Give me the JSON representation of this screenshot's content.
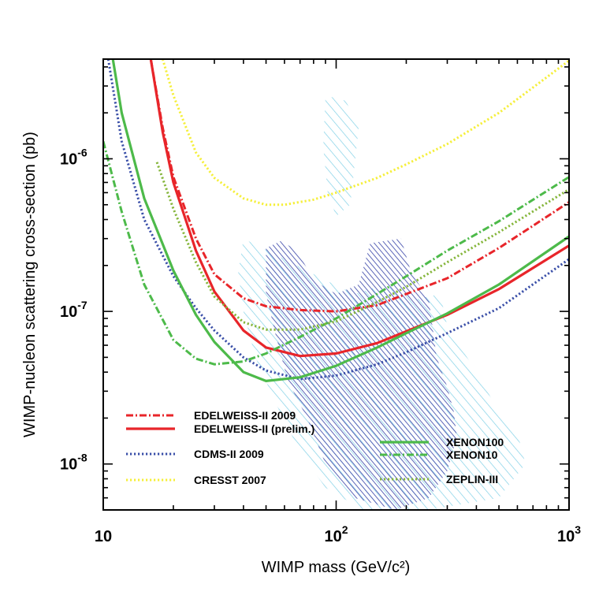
{
  "chart_data": {
    "type": "line",
    "xlabel": "WIMP mass (GeV/c²)",
    "ylabel": "WIMP-nucleon scattering cross-section (pb)",
    "x_scale": "log",
    "y_scale": "log",
    "xlim": [
      10,
      1000
    ],
    "ylim": [
      5e-09,
      4.5e-06
    ],
    "grid": false,
    "legend_position": "lower-left and lower-right inside plot",
    "x_ticks": [
      {
        "value": 10,
        "mantissa": "10",
        "exponent": ""
      },
      {
        "value": 100,
        "mantissa": "10",
        "exponent": "2"
      },
      {
        "value": 1000,
        "mantissa": "10",
        "exponent": "3"
      }
    ],
    "y_ticks": [
      {
        "value": 1e-08,
        "mantissa": "10",
        "exponent": "-8"
      },
      {
        "value": 1e-07,
        "mantissa": "10",
        "exponent": "-7"
      },
      {
        "value": 1e-06,
        "mantissa": "10",
        "exponent": "-6"
      }
    ],
    "series": [
      {
        "name": "EDELWEISS-II 2009",
        "color": "#e8252a",
        "style": "dash-dot",
        "points": [
          [
            16,
            4.5e-06
          ],
          [
            18,
            1.6e-06
          ],
          [
            20,
            7.6e-07
          ],
          [
            25,
            3e-07
          ],
          [
            30,
            1.75e-07
          ],
          [
            40,
            1.22e-07
          ],
          [
            50,
            1.08e-07
          ],
          [
            70,
            1.02e-07
          ],
          [
            100,
            1e-07
          ],
          [
            150,
            1.1e-07
          ],
          [
            200,
            1.3e-07
          ],
          [
            300,
            1.65e-07
          ],
          [
            500,
            2.6e-07
          ],
          [
            1000,
            5.2e-07
          ]
        ]
      },
      {
        "name": "EDELWEISS-II (prelim.)",
        "color": "#e8252a",
        "style": "solid",
        "points": [
          [
            16,
            4.5e-06
          ],
          [
            18,
            1.5e-06
          ],
          [
            20,
            7e-07
          ],
          [
            25,
            2.5e-07
          ],
          [
            30,
            1.35e-07
          ],
          [
            40,
            7.5e-08
          ],
          [
            50,
            5.8e-08
          ],
          [
            70,
            5.1e-08
          ],
          [
            100,
            5.3e-08
          ],
          [
            150,
            6.2e-08
          ],
          [
            200,
            7.4e-08
          ],
          [
            300,
            9.5e-08
          ],
          [
            500,
            1.4e-07
          ],
          [
            1000,
            2.7e-07
          ]
        ]
      },
      {
        "name": "CDMS-II 2009",
        "color": "#3a4fa8",
        "style": "dotted",
        "points": [
          [
            10.5,
            4.5e-06
          ],
          [
            12,
            1.3e-06
          ],
          [
            15,
            4e-07
          ],
          [
            20,
            1.7e-07
          ],
          [
            25,
            1.05e-07
          ],
          [
            30,
            7.5e-08
          ],
          [
            40,
            5e-08
          ],
          [
            50,
            4.1e-08
          ],
          [
            70,
            3.6e-08
          ],
          [
            100,
            3.8e-08
          ],
          [
            150,
            4.5e-08
          ],
          [
            200,
            5.4e-08
          ],
          [
            300,
            7.2e-08
          ],
          [
            500,
            1.05e-07
          ],
          [
            1000,
            2.2e-07
          ]
        ]
      },
      {
        "name": "CRESST 2007",
        "color": "#f5ef3a",
        "style": "dotted",
        "points": [
          [
            18,
            4.5e-06
          ],
          [
            20,
            2.6e-06
          ],
          [
            25,
            1.1e-06
          ],
          [
            30,
            7.5e-07
          ],
          [
            40,
            5.5e-07
          ],
          [
            50,
            5e-07
          ],
          [
            60,
            5e-07
          ],
          [
            80,
            5.4e-07
          ],
          [
            100,
            6e-07
          ],
          [
            150,
            7.5e-07
          ],
          [
            200,
            9.2e-07
          ],
          [
            300,
            1.25e-06
          ],
          [
            500,
            2e-06
          ],
          [
            1000,
            4.4e-06
          ]
        ]
      },
      {
        "name": "XENON100",
        "color": "#4dba4a",
        "style": "solid",
        "points": [
          [
            11,
            4.5e-06
          ],
          [
            12,
            2e-06
          ],
          [
            15,
            5.5e-07
          ],
          [
            20,
            1.85e-07
          ],
          [
            25,
            9.5e-08
          ],
          [
            30,
            6.3e-08
          ],
          [
            40,
            4e-08
          ],
          [
            50,
            3.5e-08
          ],
          [
            70,
            3.7e-08
          ],
          [
            100,
            4.4e-08
          ],
          [
            150,
            5.8e-08
          ],
          [
            200,
            7.2e-08
          ],
          [
            300,
            9.7e-08
          ],
          [
            500,
            1.5e-07
          ],
          [
            1000,
            3.1e-07
          ]
        ]
      },
      {
        "name": "XENON10",
        "color": "#4dba4a",
        "style": "dash-dot",
        "points": [
          [
            10,
            1.3e-06
          ],
          [
            12,
            4.5e-07
          ],
          [
            15,
            1.5e-07
          ],
          [
            20,
            6.5e-08
          ],
          [
            25,
            4.9e-08
          ],
          [
            30,
            4.5e-08
          ],
          [
            40,
            4.7e-08
          ],
          [
            50,
            5.3e-08
          ],
          [
            70,
            6.8e-08
          ],
          [
            100,
            9e-08
          ],
          [
            150,
            1.3e-07
          ],
          [
            200,
            1.7e-07
          ],
          [
            300,
            2.5e-07
          ],
          [
            500,
            3.9e-07
          ],
          [
            1000,
            7.6e-07
          ]
        ]
      },
      {
        "name": "ZEPLIN-III",
        "color": "#86b63c",
        "style": "dotted",
        "points": [
          [
            17,
            9.5e-07
          ],
          [
            20,
            4.7e-07
          ],
          [
            25,
            2.1e-07
          ],
          [
            30,
            1.25e-07
          ],
          [
            40,
            8.5e-08
          ],
          [
            50,
            7.6e-08
          ],
          [
            70,
            7.6e-08
          ],
          [
            100,
            8.6e-08
          ],
          [
            150,
            1.15e-07
          ],
          [
            200,
            1.45e-07
          ],
          [
            300,
            2.1e-07
          ],
          [
            500,
            3.3e-07
          ],
          [
            1000,
            6.3e-07
          ]
        ]
      }
    ],
    "regions": [
      {
        "name": "light-hatched",
        "color": "#7fd0e6",
        "polygon": [
          [
            40,
            3e-07
          ],
          [
            60,
            2.2e-07
          ],
          [
            90,
            1.6e-07
          ],
          [
            120,
            1.3e-07
          ],
          [
            160,
            1.5e-07
          ],
          [
            220,
            1.2e-07
          ],
          [
            280,
            1.3e-07
          ],
          [
            300,
            8e-08
          ],
          [
            400,
            4e-08
          ],
          [
            500,
            2.2e-08
          ],
          [
            600,
            1.6e-08
          ],
          [
            650,
            1e-08
          ],
          [
            500,
            6e-09
          ],
          [
            250,
            5e-09
          ],
          [
            130,
            5e-09
          ],
          [
            90,
            7e-09
          ],
          [
            70,
            1.2e-08
          ],
          [
            55,
            2.5e-08
          ],
          [
            45,
            5e-08
          ],
          [
            40,
            1e-07
          ],
          [
            38,
            1.8e-07
          ]
        ]
      },
      {
        "name": "light-hatched-upper",
        "color": "#7fd0e6",
        "polygon": [
          [
            90,
            2.6e-06
          ],
          [
            110,
            2.4e-06
          ],
          [
            125,
            1.6e-06
          ],
          [
            120,
            9e-07
          ],
          [
            115,
            5e-07
          ],
          [
            100,
            4.2e-07
          ],
          [
            92,
            6e-07
          ],
          [
            88,
            1.2e-06
          ]
        ]
      },
      {
        "name": "dark-hatched",
        "color": "#4a55b0",
        "polygon": [
          [
            50,
            2.6e-07
          ],
          [
            58,
            2.9e-07
          ],
          [
            68,
            2.5e-07
          ],
          [
            80,
            1.6e-07
          ],
          [
            100,
            1.3e-07
          ],
          [
            125,
            1.5e-07
          ],
          [
            140,
            2.8e-07
          ],
          [
            190,
            3e-07
          ],
          [
            210,
            1.8e-07
          ],
          [
            250,
            1.2e-07
          ],
          [
            270,
            5e-08
          ],
          [
            300,
            3.2e-08
          ],
          [
            320,
            2.2e-08
          ],
          [
            330,
            1.5e-08
          ],
          [
            300,
            9e-09
          ],
          [
            250,
            6e-09
          ],
          [
            180,
            5e-09
          ],
          [
            120,
            6e-09
          ],
          [
            90,
            1e-08
          ],
          [
            75,
            2e-08
          ],
          [
            62,
            3.5e-08
          ],
          [
            55,
            7e-08
          ],
          [
            50,
            1.3e-07
          ]
        ]
      }
    ]
  },
  "legend": {
    "left": [
      {
        "label": "EDELWEISS-II 2009",
        "series": 0
      },
      {
        "label": "EDELWEISS-II (prelim.)",
        "series": 1
      },
      {
        "label": "CDMS-II 2009",
        "series": 2
      },
      {
        "label": "CRESST 2007",
        "series": 3
      }
    ],
    "right": [
      {
        "label": "XENON100",
        "series": 4
      },
      {
        "label": "XENON10",
        "series": 5
      },
      {
        "label": "ZEPLIN-III",
        "series": 6
      }
    ]
  }
}
